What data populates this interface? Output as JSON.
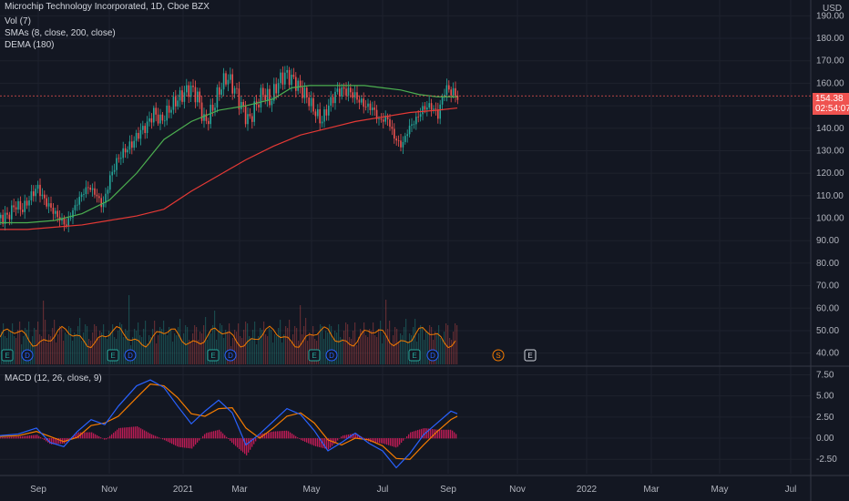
{
  "header": {
    "symbol_line": "Microchip Technology Incorporated, 1D, Cboe BZX",
    "vol_label": "Vol (7)",
    "sma_label": "SMAs (8, close, 200, close)",
    "dema_label": "DEMA (180)",
    "macd_label": "MACD (12, 26, close, 9)",
    "currency": "USD"
  },
  "last_price": {
    "value": "154.38",
    "countdown": "02:54:07"
  },
  "colors": {
    "up": "#26a69a",
    "down": "#ef5350",
    "sma_fast": "#4caf50",
    "sma_slow": "#e53935",
    "macd_line": "#2962ff",
    "signal_line": "#f57c00",
    "hist": "#e91e63",
    "volume_ma": "#f57c00"
  },
  "chart_data": {
    "type": "candlestick",
    "x_ticks": [
      "Sep",
      "Nov",
      "2021",
      "Mar",
      "May",
      "Jul",
      "Sep",
      "Nov",
      "2022",
      "Mar",
      "May",
      "Jul"
    ],
    "price_ticks": [
      "190.00",
      "180.00",
      "170.00",
      "160.00",
      "150.00",
      "140.00",
      "130.00",
      "120.00",
      "110.00",
      "100.00",
      "90.00",
      "80.00",
      "70.00",
      "60.00",
      "50.00",
      "40.00"
    ],
    "price_range": [
      35,
      195
    ],
    "macd_ticks": [
      "7.50",
      "5.00",
      "2.50",
      "0.00",
      "-2.50"
    ],
    "macd_range": [
      -4.2,
      8.2
    ],
    "event_markers": [
      {
        "label": "E",
        "kind": "earnings"
      },
      {
        "label": "D",
        "kind": "dividend"
      },
      {
        "label": "E",
        "kind": "earnings"
      },
      {
        "label": "D",
        "kind": "dividend"
      },
      {
        "label": "E",
        "kind": "earnings"
      },
      {
        "label": "D",
        "kind": "dividend"
      },
      {
        "label": "E",
        "kind": "earnings"
      },
      {
        "label": "D",
        "kind": "dividend"
      },
      {
        "label": "E",
        "kind": "earnings"
      },
      {
        "label": "D",
        "kind": "dividend"
      },
      {
        "label": "S",
        "kind": "split"
      },
      {
        "label": "E",
        "kind": "earnings"
      }
    ],
    "close_path": [
      [
        0,
        100
      ],
      [
        8,
        101
      ],
      [
        16,
        106
      ],
      [
        24,
        104
      ],
      [
        32,
        109
      ],
      [
        40,
        114
      ],
      [
        48,
        108
      ],
      [
        56,
        104
      ],
      [
        64,
        100
      ],
      [
        72,
        97
      ],
      [
        80,
        104
      ],
      [
        88,
        110
      ],
      [
        96,
        114
      ],
      [
        104,
        111
      ],
      [
        112,
        105
      ],
      [
        120,
        118
      ],
      [
        128,
        126
      ],
      [
        136,
        130
      ],
      [
        144,
        133
      ],
      [
        152,
        138
      ],
      [
        160,
        141
      ],
      [
        168,
        147
      ],
      [
        176,
        143
      ],
      [
        184,
        148
      ],
      [
        192,
        152
      ],
      [
        200,
        155
      ],
      [
        208,
        158
      ],
      [
        216,
        154
      ],
      [
        224,
        142
      ],
      [
        232,
        148
      ],
      [
        240,
        157
      ],
      [
        248,
        163
      ],
      [
        256,
        158
      ],
      [
        264,
        150
      ],
      [
        272,
        143
      ],
      [
        280,
        150
      ],
      [
        288,
        156
      ],
      [
        296,
        152
      ],
      [
        304,
        160
      ],
      [
        312,
        164
      ],
      [
        320,
        162
      ],
      [
        328,
        158
      ],
      [
        336,
        154
      ],
      [
        344,
        148
      ],
      [
        352,
        143
      ],
      [
        360,
        150
      ],
      [
        368,
        156
      ],
      [
        376,
        157
      ],
      [
        384,
        156
      ],
      [
        392,
        153
      ],
      [
        400,
        150
      ],
      [
        408,
        149
      ],
      [
        416,
        143
      ],
      [
        424,
        145
      ],
      [
        432,
        136
      ],
      [
        440,
        132
      ],
      [
        448,
        140
      ],
      [
        456,
        144
      ],
      [
        464,
        149
      ],
      [
        472,
        150
      ],
      [
        480,
        146
      ],
      [
        488,
        158
      ],
      [
        496,
        156
      ],
      [
        502,
        154
      ]
    ],
    "sma_fast": [
      [
        0,
        98
      ],
      [
        30,
        98
      ],
      [
        60,
        99
      ],
      [
        90,
        102
      ],
      [
        120,
        108
      ],
      [
        150,
        120
      ],
      [
        180,
        135
      ],
      [
        210,
        143
      ],
      [
        240,
        148
      ],
      [
        270,
        150
      ],
      [
        300,
        153
      ],
      [
        320,
        158
      ],
      [
        340,
        159
      ],
      [
        360,
        159
      ],
      [
        380,
        159
      ],
      [
        400,
        159
      ],
      [
        420,
        158
      ],
      [
        440,
        157
      ],
      [
        460,
        155
      ],
      [
        480,
        154
      ],
      [
        502,
        154
      ]
    ],
    "sma_slow": [
      [
        0,
        95
      ],
      [
        30,
        95
      ],
      [
        60,
        96
      ],
      [
        90,
        97
      ],
      [
        120,
        99
      ],
      [
        150,
        101
      ],
      [
        180,
        104
      ],
      [
        210,
        112
      ],
      [
        240,
        119
      ],
      [
        270,
        126
      ],
      [
        300,
        132
      ],
      [
        330,
        137
      ],
      [
        360,
        140
      ],
      [
        390,
        143
      ],
      [
        420,
        145
      ],
      [
        450,
        147
      ],
      [
        480,
        148
      ],
      [
        502,
        149
      ]
    ],
    "macd_line": [
      [
        0,
        0.3
      ],
      [
        20,
        0.5
      ],
      [
        40,
        1.2
      ],
      [
        55,
        -0.5
      ],
      [
        70,
        -1.0
      ],
      [
        85,
        0.8
      ],
      [
        100,
        2.2
      ],
      [
        115,
        1.6
      ],
      [
        130,
        3.8
      ],
      [
        150,
        6.2
      ],
      [
        165,
        6.9
      ],
      [
        180,
        6.0
      ],
      [
        195,
        3.8
      ],
      [
        210,
        1.7
      ],
      [
        225,
        3.2
      ],
      [
        240,
        4.5
      ],
      [
        255,
        3.0
      ],
      [
        270,
        -0.8
      ],
      [
        285,
        0.5
      ],
      [
        300,
        2.0
      ],
      [
        315,
        3.5
      ],
      [
        330,
        2.8
      ],
      [
        345,
        0.9
      ],
      [
        360,
        -1.5
      ],
      [
        375,
        -0.5
      ],
      [
        390,
        0.6
      ],
      [
        405,
        -0.6
      ],
      [
        420,
        -1.5
      ],
      [
        435,
        -3.5
      ],
      [
        450,
        -1.8
      ],
      [
        465,
        0.4
      ],
      [
        480,
        1.8
      ],
      [
        495,
        3.2
      ],
      [
        502,
        2.9
      ]
    ],
    "signal_line": [
      [
        0,
        0.2
      ],
      [
        20,
        0.3
      ],
      [
        40,
        0.8
      ],
      [
        55,
        0.2
      ],
      [
        70,
        -0.4
      ],
      [
        85,
        0.1
      ],
      [
        100,
        1.5
      ],
      [
        115,
        1.8
      ],
      [
        130,
        2.6
      ],
      [
        150,
        4.8
      ],
      [
        165,
        6.4
      ],
      [
        180,
        6.2
      ],
      [
        195,
        4.8
      ],
      [
        210,
        2.9
      ],
      [
        225,
        2.6
      ],
      [
        240,
        3.5
      ],
      [
        255,
        3.6
      ],
      [
        270,
        1.2
      ],
      [
        285,
        0.0
      ],
      [
        300,
        1.2
      ],
      [
        315,
        2.6
      ],
      [
        330,
        3.0
      ],
      [
        345,
        1.8
      ],
      [
        360,
        -0.2
      ],
      [
        375,
        -0.8
      ],
      [
        390,
        0.0
      ],
      [
        405,
        -0.2
      ],
      [
        420,
        -0.9
      ],
      [
        435,
        -2.4
      ],
      [
        450,
        -2.5
      ],
      [
        465,
        -0.8
      ],
      [
        480,
        0.8
      ],
      [
        495,
        2.2
      ],
      [
        502,
        2.6
      ]
    ]
  }
}
